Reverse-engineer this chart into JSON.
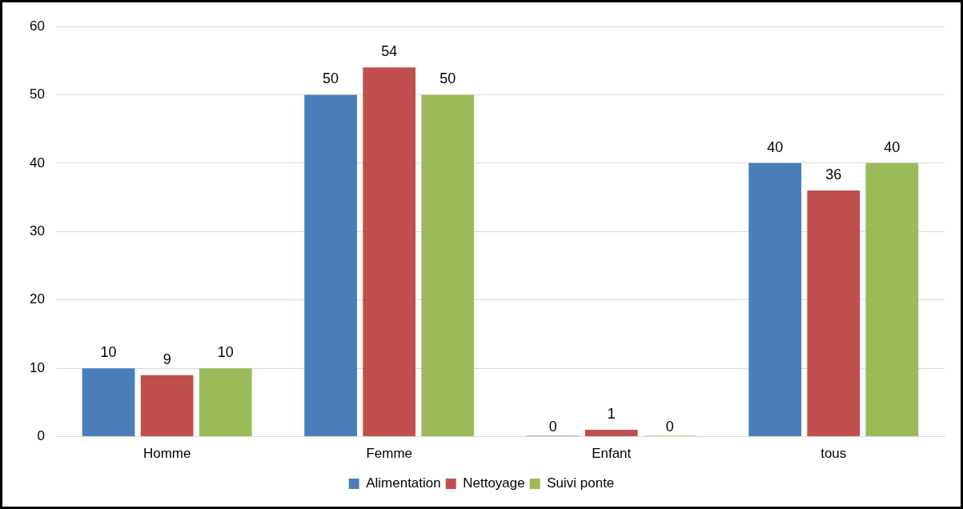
{
  "chart_data": {
    "type": "bar",
    "categories": [
      "Homme",
      "Femme",
      "Enfant",
      "tous"
    ],
    "series": [
      {
        "name": "Alimentation",
        "color": "#4a7ebb",
        "values": [
          10,
          50,
          0,
          40
        ],
        "value_labels": [
          "10",
          "50",
          "0",
          "40"
        ]
      },
      {
        "name": "Nettoyage",
        "color": "#c0504d",
        "values": [
          9,
          54,
          1,
          36
        ],
        "value_labels": [
          "9",
          "54",
          "1",
          "36"
        ]
      },
      {
        "name": "Suivi ponte",
        "color": "#9bbb59",
        "values": [
          10,
          50,
          0,
          40
        ],
        "value_labels": [
          "10",
          "50",
          "0",
          "40"
        ]
      }
    ],
    "ylim": [
      0,
      60
    ],
    "yticks": [
      0,
      10,
      20,
      30,
      40,
      50,
      60
    ],
    "grid": "y",
    "legend": "bottom"
  }
}
